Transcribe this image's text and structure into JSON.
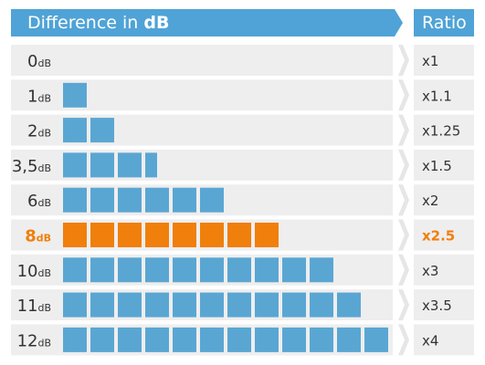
{
  "header": {
    "title_prefix": "Difference in ",
    "title_unit": "dB",
    "ratio_label": "Ratio"
  },
  "colors": {
    "header_bg": "#4fa3d6",
    "row_bg": "#eeeeee",
    "square": "#5aa6d3",
    "highlight": "#f07f0b",
    "text": "#333333",
    "arrow_bg": "#e6e6e6"
  },
  "chart_data": {
    "type": "bar",
    "title": "Difference in dB",
    "rows": [
      {
        "label": "0",
        "unit": "dB",
        "squares": 0,
        "ratio": "x1",
        "highlight": false
      },
      {
        "label": "1",
        "unit": "dB",
        "squares": 1,
        "ratio": "x1.1",
        "highlight": false
      },
      {
        "label": "2",
        "unit": "dB",
        "squares": 2,
        "ratio": "x1.25",
        "highlight": false
      },
      {
        "label": "3,5",
        "unit": "dB",
        "squares": 3.5,
        "ratio": "x1.5",
        "highlight": false
      },
      {
        "label": "6",
        "unit": "dB",
        "squares": 6,
        "ratio": "x2",
        "highlight": false
      },
      {
        "label": "8",
        "unit": "dB",
        "squares": 8,
        "ratio": "x2.5",
        "highlight": true
      },
      {
        "label": "10",
        "unit": "dB",
        "squares": 10,
        "ratio": "x3",
        "highlight": false
      },
      {
        "label": "11",
        "unit": "dB",
        "squares": 11,
        "ratio": "x3.5",
        "highlight": false
      },
      {
        "label": "12",
        "unit": "dB",
        "squares": 12,
        "ratio": "x4",
        "highlight": false
      }
    ]
  }
}
